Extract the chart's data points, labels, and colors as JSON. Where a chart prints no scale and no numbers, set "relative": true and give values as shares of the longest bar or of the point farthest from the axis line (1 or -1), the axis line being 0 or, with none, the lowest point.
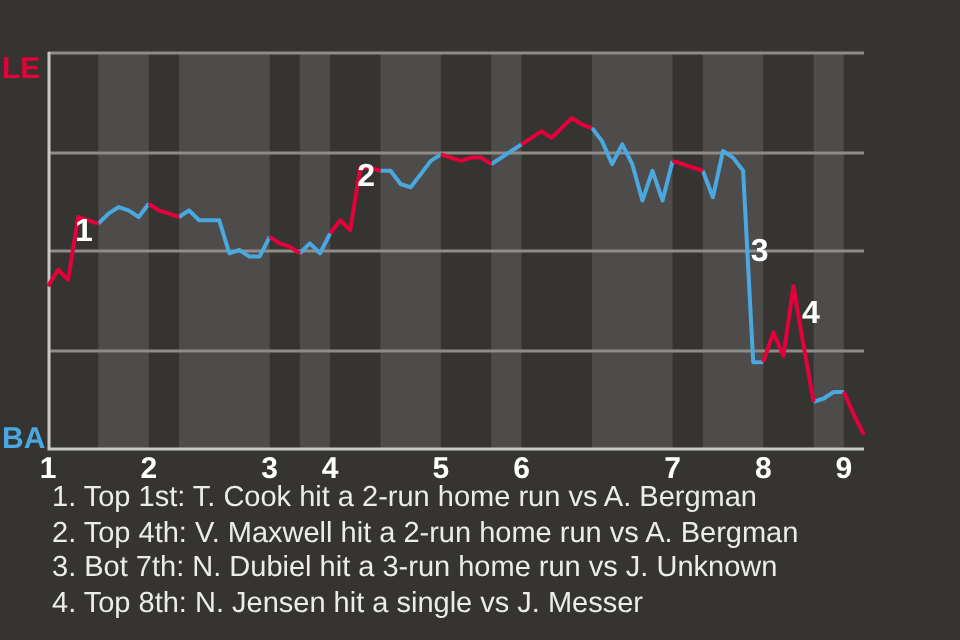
{
  "chart_data": {
    "type": "line",
    "marker": "none",
    "grid": "y",
    "relative": true,
    "categories": [
      "1",
      null,
      null,
      null,
      null,
      null,
      null,
      null,
      null,
      null,
      "2",
      null,
      null,
      null,
      null,
      null,
      null,
      null,
      null,
      null,
      null,
      null,
      "3",
      null,
      null,
      null,
      null,
      null,
      "4",
      null,
      null,
      null,
      null,
      null,
      null,
      null,
      null,
      null,
      null,
      "5",
      null,
      null,
      null,
      null,
      null,
      null,
      null,
      "6",
      null,
      null,
      null,
      null,
      null,
      null,
      null,
      null,
      null,
      null,
      null,
      null,
      null,
      null,
      "7",
      null,
      null,
      null,
      null,
      null,
      null,
      null,
      null,
      "8",
      null,
      null,
      null,
      null,
      null,
      null,
      null,
      "9",
      null,
      null
    ],
    "series": [
      {
        "color": "#e4003a",
        "values": [
          0.49,
          0.54,
          0.51,
          0.7,
          0.69,
          0.68,
          null,
          null,
          null,
          null,
          0.74,
          0.72,
          0.71,
          0.7,
          null,
          null,
          null,
          null,
          null,
          null,
          null,
          null,
          0.64,
          0.62,
          0.61,
          0.59,
          null,
          null,
          0.65,
          0.69,
          0.66,
          0.85,
          0.85,
          0.84,
          null,
          null,
          null,
          null,
          null,
          0.89,
          0.88,
          0.87,
          0.88,
          0.88,
          0.86,
          null,
          null,
          0.92,
          0.94,
          0.96,
          0.94,
          0.97,
          1,
          0.98,
          0.97,
          null,
          null,
          null,
          null,
          null,
          null,
          null,
          0.87,
          0.86,
          0.85,
          0.84,
          null,
          null,
          null,
          null,
          null,
          0.26,
          0.35,
          0.28,
          0.49,
          0.31,
          0.14,
          null,
          null,
          0.17,
          0.1,
          0.04
        ]
      },
      {
        "color": "#4aa8e0",
        "values": [
          null,
          null,
          null,
          null,
          null,
          0.68,
          0.71,
          0.73,
          0.72,
          0.7,
          0.74,
          null,
          null,
          0.7,
          0.72,
          0.69,
          0.69,
          0.69,
          0.59,
          0.6,
          0.58,
          0.58,
          0.64,
          null,
          null,
          0.59,
          0.62,
          0.59,
          0.65,
          null,
          null,
          null,
          null,
          0.84,
          0.84,
          0.8,
          0.79,
          0.83,
          0.87,
          0.89,
          null,
          null,
          null,
          null,
          0.86,
          0.88,
          0.9,
          0.92,
          null,
          null,
          null,
          null,
          null,
          null,
          0.97,
          0.93,
          0.86,
          0.92,
          0.86,
          0.75,
          0.84,
          0.75,
          0.87,
          null,
          null,
          0.84,
          0.76,
          0.9,
          0.88,
          0.84,
          0.26,
          0.26,
          null,
          null,
          null,
          null,
          0.14,
          0.15,
          0.17,
          0.17,
          null,
          null
        ]
      }
    ],
    "annotations": [
      "LE",
      "BA",
      "1",
      "2",
      "3",
      "4",
      "1. Top 1st: T. Cook hit a 2-run home run vs A. Bergman",
      "2. Top 4th: V. Maxwell hit a 2-run home run vs A. Bergman",
      "3. Bot 7th: N. Dubiel hit a 3-run home run vs J. Unknown",
      "4. Top 8th: N. Jensen hit a single vs J. Messer"
    ]
  }
}
